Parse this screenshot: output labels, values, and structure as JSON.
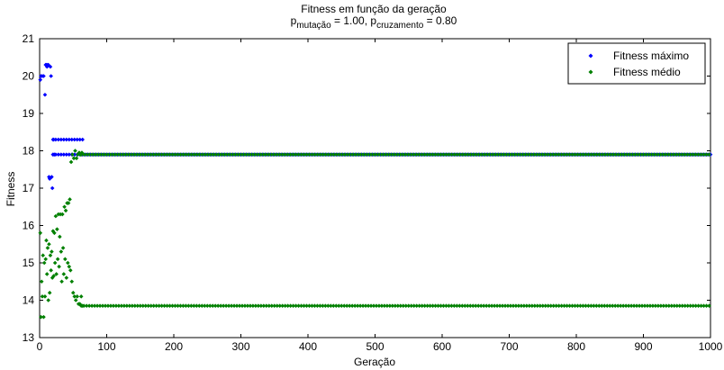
{
  "chart_data": {
    "type": "scatter",
    "title": "Fitness em função da geração",
    "subtitle": {
      "prefix1": "p",
      "sub1": "mutação",
      "mid": " = 1.00, p",
      "sub2": "cruzamento",
      "suffix": " = 0.80"
    },
    "xlabel": "Geração",
    "ylabel": "Fitness",
    "xlim": [
      0,
      1000
    ],
    "ylim": [
      13,
      21
    ],
    "xticks": [
      0,
      100,
      200,
      300,
      400,
      500,
      600,
      700,
      800,
      900,
      1000
    ],
    "yticks": [
      13,
      14,
      15,
      16,
      17,
      18,
      19,
      20,
      21
    ],
    "grid": false,
    "legend_position": "top-right",
    "series": [
      {
        "name": "Fitness máximo",
        "color": "#0000ff",
        "marker": "diamond",
        "early_points": [
          [
            1,
            19.9
          ],
          [
            2,
            20.0
          ],
          [
            4,
            20.0
          ],
          [
            6,
            20.0
          ],
          [
            8,
            19.5
          ],
          [
            9,
            20.3
          ],
          [
            10,
            20.3
          ],
          [
            11,
            20.25
          ],
          [
            12,
            20.3
          ],
          [
            13,
            20.3
          ],
          [
            14,
            17.3
          ],
          [
            15,
            17.25
          ],
          [
            16,
            20.25
          ],
          [
            17,
            20.0
          ],
          [
            18,
            17.3
          ],
          [
            19,
            17.0
          ],
          [
            20,
            17.9
          ],
          [
            21,
            18.3
          ],
          [
            22,
            17.9
          ]
        ],
        "steady_segments": [
          {
            "from": 20,
            "to": 1000,
            "y": 17.9
          },
          {
            "from": 20,
            "to": 65,
            "y": 18.3
          }
        ]
      },
      {
        "name": "Fitness médio",
        "color": "#008000",
        "marker": "diamond",
        "early_points": [
          [
            1,
            15.8
          ],
          [
            2,
            13.55
          ],
          [
            3,
            14.5
          ],
          [
            4,
            14.1
          ],
          [
            5,
            15.2
          ],
          [
            6,
            13.55
          ],
          [
            7,
            15.0
          ],
          [
            8,
            14.1
          ],
          [
            9,
            15.1
          ],
          [
            10,
            15.6
          ],
          [
            11,
            14.7
          ],
          [
            12,
            15.4
          ],
          [
            13,
            14.0
          ],
          [
            14,
            15.5
          ],
          [
            15,
            14.2
          ],
          [
            16,
            15.2
          ],
          [
            17,
            14.8
          ],
          [
            18,
            15.3
          ],
          [
            19,
            14.6
          ],
          [
            20,
            15.85
          ],
          [
            21,
            14.65
          ],
          [
            22,
            15.8
          ],
          [
            23,
            15.0
          ],
          [
            24,
            16.25
          ],
          [
            25,
            14.7
          ],
          [
            26,
            15.9
          ],
          [
            27,
            15.1
          ],
          [
            28,
            16.3
          ],
          [
            29,
            14.9
          ],
          [
            30,
            15.7
          ],
          [
            31,
            16.3
          ],
          [
            32,
            15.3
          ],
          [
            33,
            14.5
          ],
          [
            34,
            16.3
          ],
          [
            35,
            15.4
          ],
          [
            36,
            14.7
          ],
          [
            37,
            16.5
          ],
          [
            38,
            15.1
          ],
          [
            39,
            16.4
          ],
          [
            40,
            14.6
          ],
          [
            41,
            16.6
          ],
          [
            42,
            15.0
          ],
          [
            43,
            16.6
          ],
          [
            44,
            14.9
          ],
          [
            45,
            16.7
          ],
          [
            46,
            14.8
          ],
          [
            47,
            17.7
          ],
          [
            48,
            14.5
          ],
          [
            49,
            17.9
          ],
          [
            50,
            14.2
          ],
          [
            51,
            17.8
          ],
          [
            52,
            14.1
          ],
          [
            53,
            18.0
          ],
          [
            54,
            14.0
          ],
          [
            55,
            17.8
          ],
          [
            56,
            14.1
          ],
          [
            57,
            17.9
          ],
          [
            58,
            13.9
          ],
          [
            59,
            17.95
          ],
          [
            60,
            13.9
          ],
          [
            61,
            17.9
          ],
          [
            62,
            14.1
          ],
          [
            63,
            17.95
          ],
          [
            64,
            13.85
          ]
        ],
        "steady_segments": [
          {
            "from": 62,
            "to": 1000,
            "y": 17.9
          },
          {
            "from": 62,
            "to": 1000,
            "y": 13.85
          }
        ]
      }
    ]
  }
}
